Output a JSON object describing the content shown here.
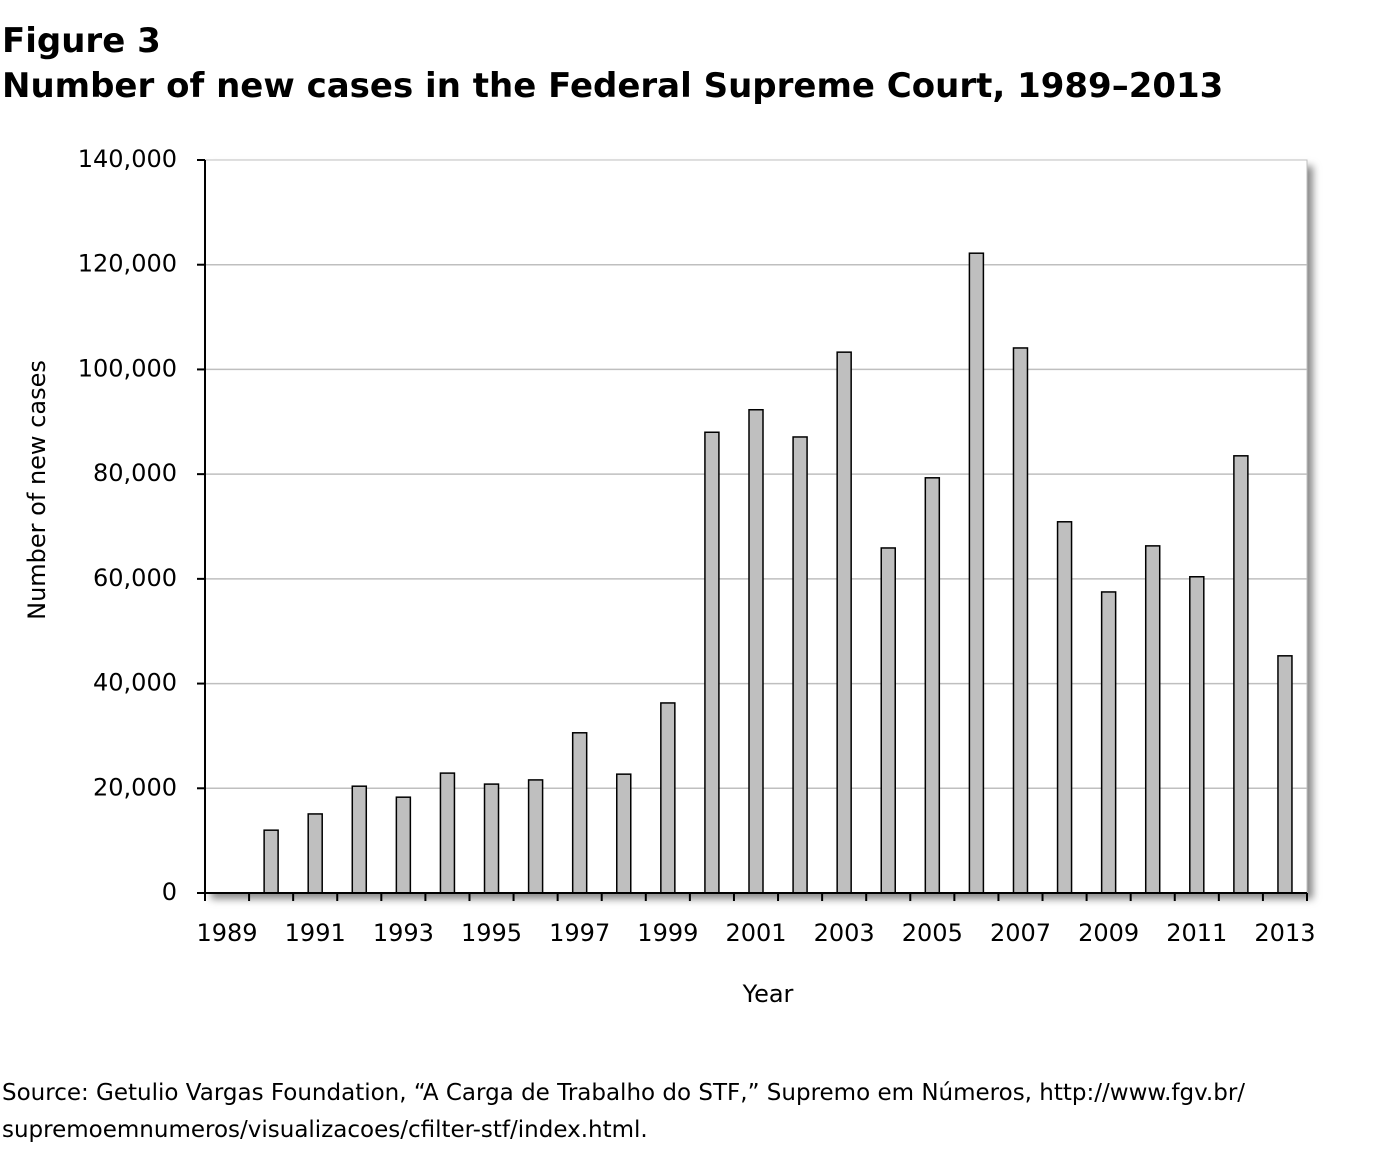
{
  "chart_data": {
    "type": "bar",
    "figure_label": "Figure 3",
    "title": "Number of new cases in the Federal Supreme Court, 1989–2013",
    "x_label": "Year",
    "y_label": "Number of new cases",
    "categories": [
      "1989",
      null,
      "1991",
      null,
      "1993",
      null,
      "1995",
      null,
      "1997",
      null,
      "1999",
      null,
      "2001",
      null,
      "2003",
      null,
      "2005",
      null,
      "2007",
      null,
      "2009",
      null,
      "2011",
      null,
      "2013"
    ],
    "values": [
      null,
      12000,
      15100,
      20400,
      18300,
      22900,
      20800,
      21600,
      30600,
      22700,
      36300,
      88000,
      92300,
      87100,
      103300,
      65900,
      79300,
      122200,
      104100,
      70900,
      57500,
      66300,
      60400,
      83500,
      45300
    ],
    "color": "#bfbfbf",
    "ylim": [
      0,
      140000
    ],
    "yticks": [
      0,
      {
        "value": 20000,
        "label": "20,000"
      },
      {
        "value": 40000,
        "label": "40,000"
      },
      {
        "value": 60000,
        "label": "60,000"
      },
      {
        "value": 80000,
        "label": "80,000"
      },
      {
        "value": 100000,
        "label": "100,000"
      },
      {
        "value": 120000,
        "label": "120,000"
      },
      {
        "value": 140000,
        "label": "140,000"
      }
    ],
    "grid": true,
    "source": [
      "Source: Getulio Vargas Foundation, “A Carga de Trabalho do STF,” Supremo em Números, http://www.fgv.br/",
      "supremoemnumeros/visualizacoes/cfilter-stf/index.html."
    ]
  }
}
